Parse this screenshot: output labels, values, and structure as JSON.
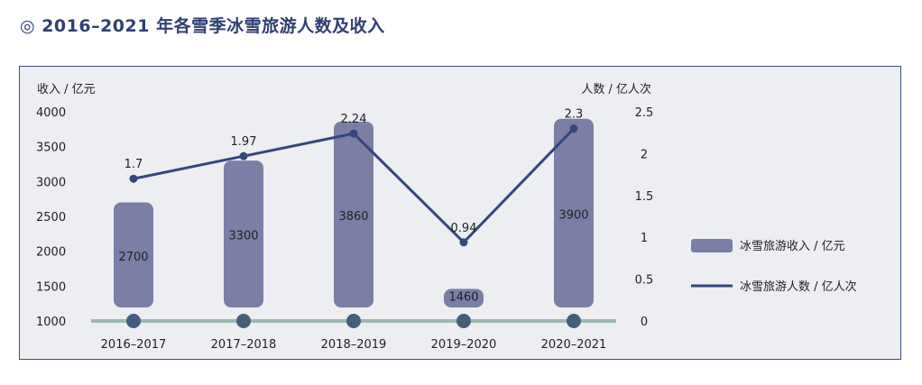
{
  "title": "◎ 2016–2021 年各雪季冰雪旅游人数及收入",
  "chart_data": {
    "type": "bar",
    "categories": [
      "2016–2017",
      "2017–2018",
      "2018–2019",
      "2019–2020",
      "2020–2021"
    ],
    "series": [
      {
        "name": "冰雪旅游收入 / 亿元",
        "type": "bar",
        "axis": "left",
        "values": [
          2700,
          3300,
          3860,
          1460,
          3900
        ]
      },
      {
        "name": "冰雪旅游人数 / 亿人次",
        "type": "line",
        "axis": "right",
        "values": [
          1.7,
          1.97,
          2.24,
          0.94,
          2.3
        ]
      }
    ],
    "ylabel": "收入 / 亿元",
    "ylabel_right": "人数 / 亿人次",
    "ylim": [
      1000,
      4000
    ],
    "ylim_right": [
      0,
      2.5
    ],
    "yticks": [
      "4000",
      "3500",
      "3000",
      "2500",
      "2000",
      "1500",
      "1000"
    ],
    "yticks_right": [
      "2.5",
      "2",
      "1.5",
      "1",
      "0.5",
      "0"
    ],
    "grid": false,
    "legend_position": "right",
    "colors": {
      "bar": "#7b7fa6",
      "line": "#34477e",
      "marker": "#445f7c",
      "baseline": "#9db8b3"
    }
  }
}
